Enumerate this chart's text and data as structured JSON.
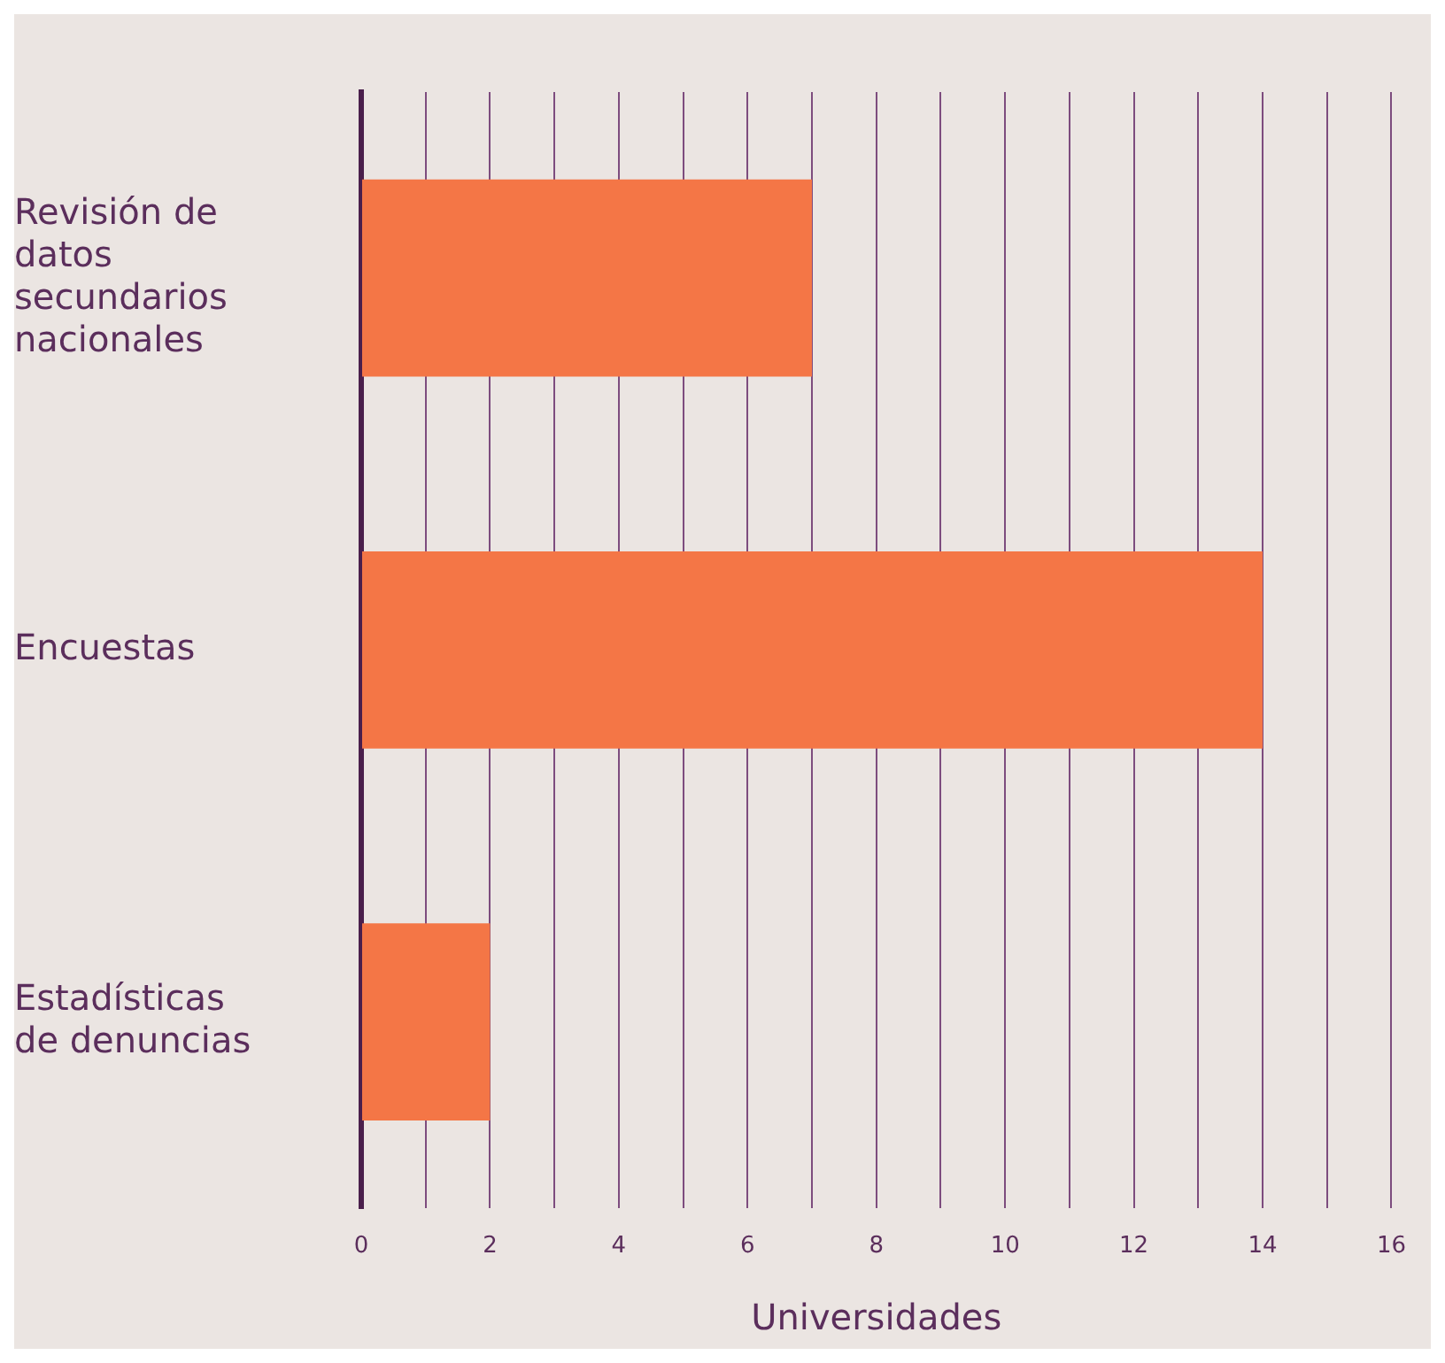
{
  "chart_data": {
    "type": "bar",
    "orientation": "horizontal",
    "xlabel": "Universidades",
    "categories": [
      "Revisión de datos secundarios nacionales",
      "Encuestas",
      "Estadísticas de denuncias"
    ],
    "values": [
      7,
      14,
      2
    ],
    "color": "#f47646",
    "xlim": [
      0,
      16
    ],
    "xticks": [
      0,
      {
        "value": 1,
        "label": null
      },
      2,
      {
        "value": 3,
        "label": null
      },
      4,
      {
        "value": 5,
        "label": null
      },
      6,
      {
        "value": 7,
        "label": null
      },
      8,
      {
        "value": 9,
        "label": null
      },
      10,
      {
        "value": 11,
        "label": null
      },
      12,
      {
        "value": 13,
        "label": null
      },
      14,
      {
        "value": 15,
        "label": null
      },
      16
    ],
    "grid": "x"
  }
}
